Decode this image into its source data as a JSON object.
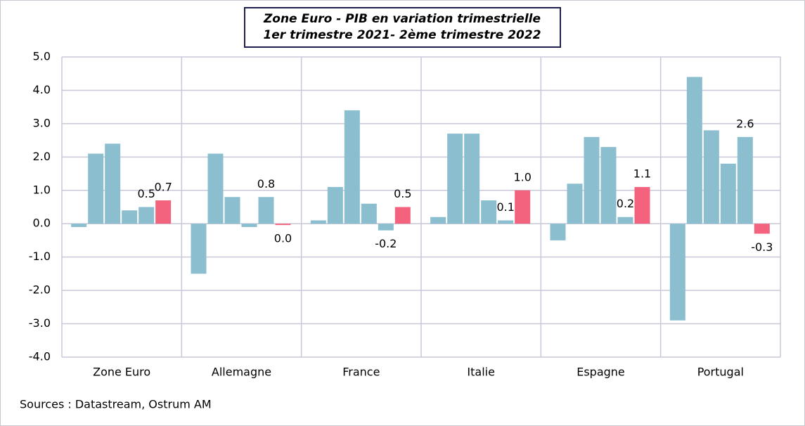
{
  "chart_data": {
    "type": "grouped-bar",
    "title": "Zone Euro - PIB en variation trimestrielle",
    "subtitle": "1er trimestre 2021- 2ème trimestre 2022",
    "source": "Sources : Datastream, Ostrum AM",
    "categories": [
      "Zone Euro",
      "Allemagne",
      "France",
      "Italie",
      "Espagne",
      "Portugal"
    ],
    "values": [
      [
        -0.1,
        2.1,
        2.4,
        0.4,
        0.5,
        0.7
      ],
      [
        -1.5,
        2.1,
        0.8,
        -0.1,
        0.8,
        -0.04
      ],
      [
        0.1,
        1.1,
        3.4,
        0.6,
        -0.2,
        0.5
      ],
      [
        0.2,
        2.7,
        2.7,
        0.7,
        0.1,
        1.0
      ],
      [
        -0.5,
        1.2,
        2.6,
        2.3,
        0.2,
        1.1
      ],
      [
        -2.9,
        4.4,
        2.8,
        1.8,
        2.6,
        -0.3
      ]
    ],
    "value_labels": [
      [
        null,
        null,
        null,
        null,
        "0.5",
        "0.7"
      ],
      [
        null,
        null,
        null,
        null,
        "0.8",
        "0.0"
      ],
      [
        null,
        null,
        null,
        null,
        "-0.2",
        "0.5"
      ],
      [
        null,
        null,
        null,
        null,
        "0.1",
        "1.0"
      ],
      [
        null,
        null,
        null,
        null,
        "0.2",
        "1.1"
      ],
      [
        null,
        null,
        null,
        null,
        "2.6",
        "-0.3"
      ]
    ],
    "bar_colors": [
      "#8bbfd0",
      "#8bbfd0",
      "#8bbfd0",
      "#8bbfd0",
      "#8bbfd0",
      "#f4637e"
    ],
    "ylim": [
      -4,
      5
    ],
    "yticks": [
      {
        "value": -4,
        "label": "-4.0"
      },
      {
        "value": -3,
        "label": "-3.0"
      },
      {
        "value": -2,
        "label": "-2.0"
      },
      {
        "value": -1,
        "label": "-1.0"
      },
      {
        "value": 0,
        "label": "0.0"
      },
      {
        "value": 1,
        "label": "1.0"
      },
      {
        "value": 2,
        "label": "2.0"
      },
      {
        "value": 3,
        "label": "3.0"
      },
      {
        "value": 4,
        "label": "4.0"
      },
      {
        "value": 5,
        "label": "5.0"
      }
    ],
    "grid": true
  }
}
